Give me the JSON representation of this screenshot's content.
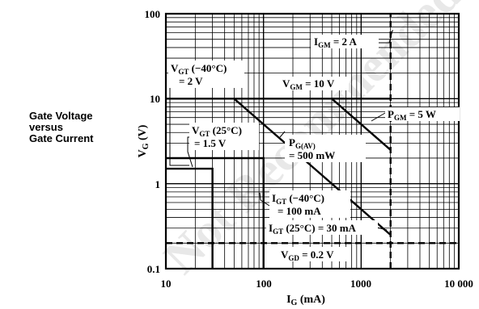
{
  "caption": {
    "lines": [
      "Gate Voltage",
      "versus",
      "Gate Current"
    ]
  },
  "watermark": "Not Recommended",
  "chart_data": {
    "type": "line",
    "x_scale": "log",
    "y_scale": "log",
    "xlim": [
      10,
      10000
    ],
    "ylim": [
      0.1,
      100
    ],
    "grid": true,
    "x_ticks": [
      "10",
      "100",
      "1000",
      "10 000"
    ],
    "y_ticks": [
      "0.1",
      "1",
      "10",
      "100"
    ],
    "xlabel": {
      "main": "I",
      "sub": "G",
      "unit": " (mA)"
    },
    "ylabel": {
      "main": "V",
      "sub": "G",
      "unit": " (V)"
    },
    "series": [
      {
        "style": "solid",
        "x": [
          10,
          2000
        ],
        "y": [
          10,
          10
        ]
      },
      {
        "style": "dashed",
        "x": [
          2000,
          2000
        ],
        "y": [
          0.1,
          100
        ]
      },
      {
        "style": "dashed",
        "x": [
          10,
          10000
        ],
        "y": [
          0.2,
          0.2
        ]
      },
      {
        "style": "solid",
        "x": [
          50,
          2000
        ],
        "y": [
          10,
          0.25
        ]
      },
      {
        "style": "solid",
        "x": [
          500,
          2000
        ],
        "y": [
          10,
          2.5
        ]
      },
      {
        "style": "solid",
        "x": [
          10,
          100,
          100
        ],
        "y": [
          2,
          2,
          0.1
        ]
      },
      {
        "style": "solid",
        "x": [
          10,
          30,
          30
        ],
        "y": [
          1.5,
          1.5,
          0.1
        ]
      }
    ],
    "annotations": [
      {
        "id": "igm",
        "main": "I",
        "sub": "GM",
        "text": " = 2 A"
      },
      {
        "id": "vgm",
        "main": "V",
        "sub": "GM",
        "text": " = 10 V"
      },
      {
        "id": "pgm",
        "main": "P",
        "sub": "GM",
        "text": " = 5 W"
      },
      {
        "id": "pgav",
        "main": "P",
        "sub": "G(AV)",
        "text2": "= 500 mW"
      },
      {
        "id": "vgt40",
        "main": "V",
        "sub": "GT",
        "text": " (−40°C)",
        "text2": "= 2 V"
      },
      {
        "id": "vgt25",
        "main": "V",
        "sub": "GT",
        "text": " (25°C)",
        "text2": "= 1.5 V"
      },
      {
        "id": "igt40",
        "main": "I",
        "sub": "GT",
        "text": " (−40°C)",
        "text2": "= 100 mA"
      },
      {
        "id": "igt25",
        "main": "I",
        "sub": "GT",
        "text": " (25°C) = 30 mA"
      },
      {
        "id": "vgd",
        "main": "V",
        "sub": "GD",
        "text": " = 0.2 V"
      }
    ]
  }
}
